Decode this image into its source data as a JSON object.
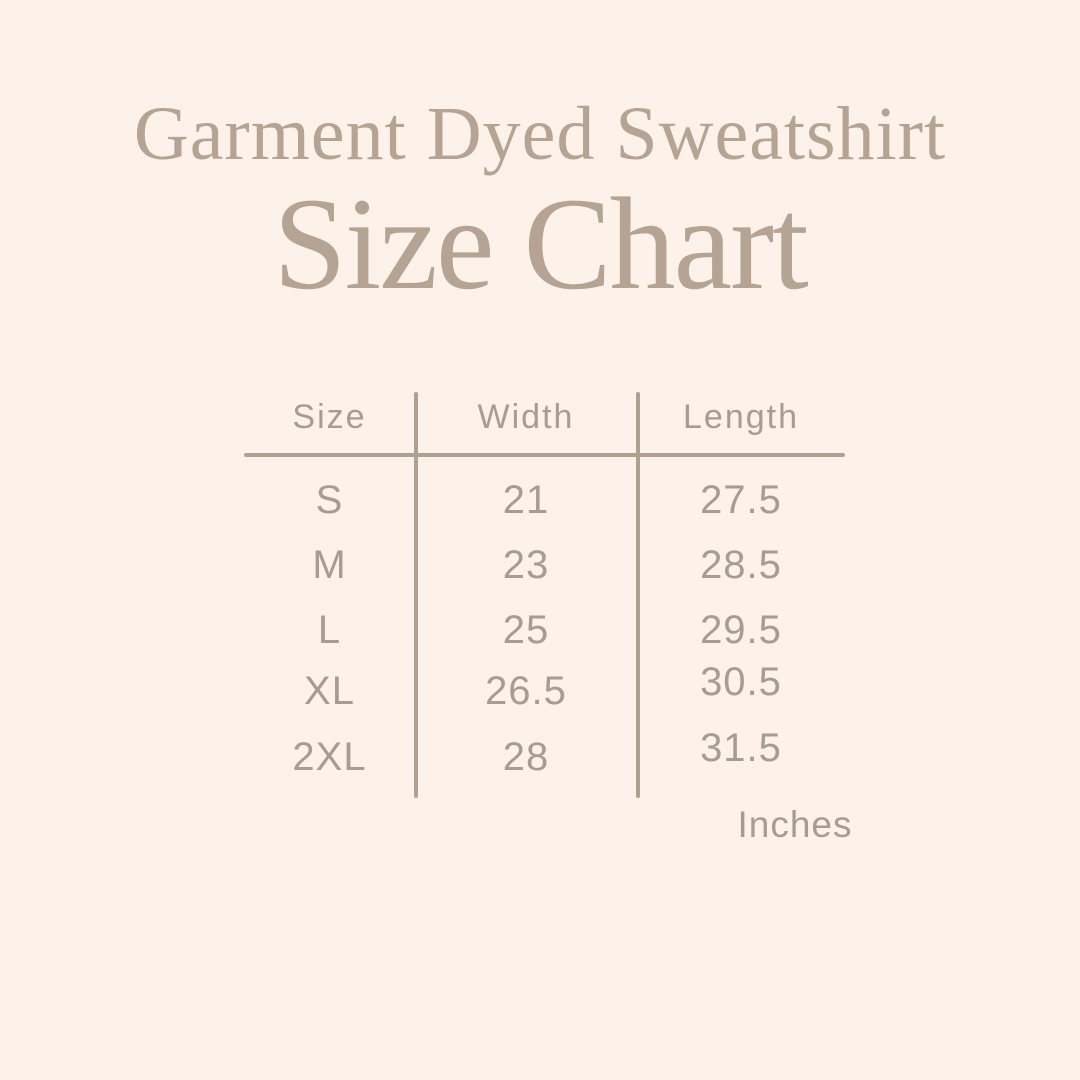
{
  "page": {
    "background_color": "#fcf2e9",
    "title_color": "#b5a394",
    "table_text_color": "#a99b8e",
    "line_color": "#b0a092"
  },
  "header": {
    "product_line": "Garment Dyed Sweatshirt",
    "title_line": "Size Chart"
  },
  "table": {
    "headers": [
      "Size",
      "Width",
      "Length"
    ],
    "rows": [
      {
        "size": "S",
        "width": "21",
        "length": "27.5"
      },
      {
        "size": "M",
        "width": "23",
        "length": "28.5"
      },
      {
        "size": "L",
        "width": "25",
        "length": "29.5"
      },
      {
        "size": "XL",
        "width": "26.5",
        "length": "30.5"
      },
      {
        "size": "2XL",
        "width": "28",
        "length": "31.5"
      }
    ],
    "unit_label": "Inches"
  },
  "chart_data": {
    "type": "table",
    "title": "Garment Dyed Sweatshirt Size Chart",
    "columns": [
      "Size",
      "Width",
      "Length"
    ],
    "rows": [
      [
        "S",
        21,
        27.5
      ],
      [
        "M",
        23,
        28.5
      ],
      [
        "L",
        25,
        29.5
      ],
      [
        "XL",
        26.5,
        30.5
      ],
      [
        "2XL",
        28,
        31.5
      ]
    ],
    "unit": "Inches"
  }
}
